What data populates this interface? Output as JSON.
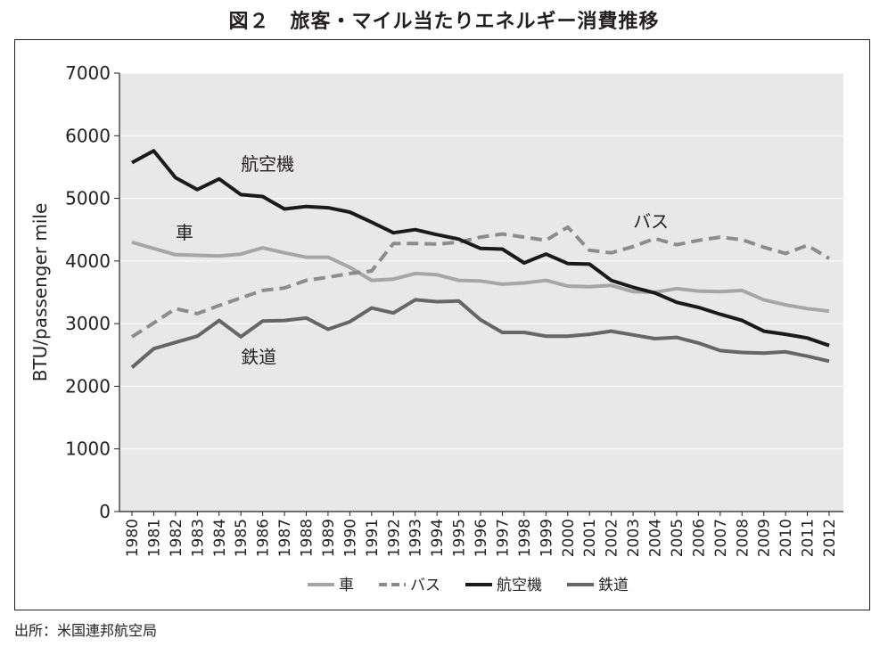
{
  "title": "図２　旅客・マイル当たりエネルギー消費推移",
  "source": "出所：米国連邦航空局",
  "chart_data": {
    "type": "line",
    "title": "図２　旅客・マイル当たりエネルギー消費推移",
    "xlabel": "",
    "ylabel": "BTU/passenger mile",
    "ylim": [
      0,
      7000
    ],
    "yticks": [
      0,
      1000,
      2000,
      3000,
      4000,
      5000,
      6000,
      7000
    ],
    "grid": true,
    "legend_position": "bottom",
    "x": [
      "1980",
      "1981",
      "1982",
      "1983",
      "1984",
      "1985",
      "1986",
      "1987",
      "1988",
      "1989",
      "1990",
      "1991",
      "1992",
      "1993",
      "1994",
      "1995",
      "1996",
      "1997",
      "1998",
      "1999",
      "2000",
      "2001",
      "2002",
      "2003",
      "2004",
      "2005",
      "2006",
      "2007",
      "2008",
      "2009",
      "2010",
      "2011",
      "2012"
    ],
    "series": [
      {
        "name": "車",
        "color": "#a6a6a6",
        "dash": "solid",
        "values": [
          4300,
          4200,
          4100,
          4090,
          4080,
          4110,
          4210,
          4130,
          4060,
          4060,
          3900,
          3690,
          3710,
          3800,
          3780,
          3690,
          3680,
          3630,
          3650,
          3690,
          3600,
          3590,
          3610,
          3510,
          3500,
          3560,
          3520,
          3510,
          3530,
          3380,
          3300,
          3240,
          3200
        ]
      },
      {
        "name": "バス",
        "color": "#8c8c8c",
        "dash": "dashed",
        "values": [
          2790,
          3010,
          3240,
          3160,
          3290,
          3410,
          3530,
          3570,
          3690,
          3740,
          3800,
          3840,
          4280,
          4280,
          4270,
          4300,
          4380,
          4430,
          4380,
          4330,
          4540,
          4170,
          4130,
          4230,
          4360,
          4260,
          4330,
          4380,
          4340,
          4220,
          4120,
          4250,
          4040
        ]
      },
      {
        "name": "航空機",
        "color": "#1a1a1a",
        "dash": "solid",
        "values": [
          5570,
          5760,
          5330,
          5140,
          5310,
          5060,
          5030,
          4830,
          4870,
          4850,
          4780,
          4620,
          4450,
          4500,
          4420,
          4350,
          4200,
          4190,
          3970,
          4110,
          3960,
          3950,
          3690,
          3580,
          3490,
          3340,
          3260,
          3150,
          3050,
          2880,
          2830,
          2770,
          2650
        ]
      },
      {
        "name": "鉄道",
        "color": "#666666",
        "dash": "solid",
        "values": [
          2300,
          2600,
          2700,
          2800,
          3050,
          2790,
          3040,
          3050,
          3090,
          2910,
          3030,
          3250,
          3170,
          3380,
          3350,
          3360,
          3060,
          2860,
          2860,
          2800,
          2800,
          2830,
          2880,
          2820,
          2760,
          2780,
          2690,
          2570,
          2540,
          2530,
          2550,
          2480,
          2400
        ]
      }
    ],
    "annotations": [
      {
        "text": "航空機",
        "series": "航空機",
        "x": "1985",
        "y": 5550
      },
      {
        "text": "車",
        "series": "車",
        "x": "1982",
        "y": 4450
      },
      {
        "text": "バス",
        "series": "バス",
        "x": "2003",
        "y": 4630
      },
      {
        "text": "鉄道",
        "series": "鉄道",
        "x": "1985",
        "y": 2470
      }
    ]
  }
}
